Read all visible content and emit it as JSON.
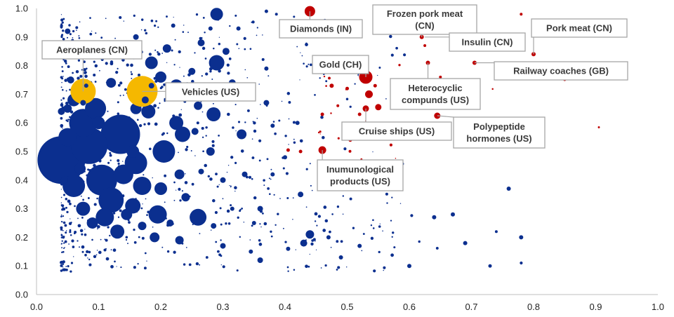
{
  "chart_data": {
    "type": "scatter",
    "title": "",
    "xlabel": "",
    "ylabel": "",
    "xlim": [
      0.0,
      1.0
    ],
    "ylim": [
      0.0,
      1.0
    ],
    "x_ticks": [
      "0.0",
      "0.1",
      "0.2",
      "0.3",
      "0.4",
      "0.5",
      "0.6",
      "0.7",
      "0.8",
      "0.9",
      "1.0"
    ],
    "y_ticks": [
      "0.0",
      "0.1",
      "0.2",
      "0.3",
      "0.4",
      "0.5",
      "0.6",
      "0.7",
      "0.8",
      "0.9",
      "1.0"
    ],
    "grid": false,
    "legend": "none",
    "colors": {
      "general": "#0b2f8f",
      "highlight_red": "#c00000",
      "highlight_gold": "#f5b800"
    },
    "series": [
      {
        "color": "#0b2f8f",
        "points": [
          {
            "x": 0.04,
            "y": 0.47,
            "s": 34
          },
          {
            "x": 0.135,
            "y": 0.56,
            "s": 28
          },
          {
            "x": 0.085,
            "y": 0.52,
            "s": 26
          },
          {
            "x": 0.105,
            "y": 0.4,
            "s": 22
          },
          {
            "x": 0.075,
            "y": 0.6,
            "s": 20
          },
          {
            "x": 0.12,
            "y": 0.33,
            "s": 18
          },
          {
            "x": 0.06,
            "y": 0.38,
            "s": 16
          },
          {
            "x": 0.16,
            "y": 0.46,
            "s": 16
          },
          {
            "x": 0.205,
            "y": 0.5,
            "s": 16
          },
          {
            "x": 0.095,
            "y": 0.65,
            "s": 15
          },
          {
            "x": 0.14,
            "y": 0.42,
            "s": 14
          },
          {
            "x": 0.17,
            "y": 0.38,
            "s": 13
          },
          {
            "x": 0.05,
            "y": 0.55,
            "s": 13
          },
          {
            "x": 0.11,
            "y": 0.27,
            "s": 13
          },
          {
            "x": 0.195,
            "y": 0.28,
            "s": 13
          },
          {
            "x": 0.26,
            "y": 0.27,
            "s": 12
          },
          {
            "x": 0.29,
            "y": 0.81,
            "s": 11
          },
          {
            "x": 0.235,
            "y": 0.56,
            "s": 11
          },
          {
            "x": 0.225,
            "y": 0.6,
            "s": 10
          },
          {
            "x": 0.285,
            "y": 0.63,
            "s": 10
          },
          {
            "x": 0.155,
            "y": 0.31,
            "s": 11
          },
          {
            "x": 0.075,
            "y": 0.3,
            "s": 10
          },
          {
            "x": 0.13,
            "y": 0.22,
            "s": 10
          },
          {
            "x": 0.18,
            "y": 0.64,
            "s": 10
          },
          {
            "x": 0.06,
            "y": 0.68,
            "s": 9
          },
          {
            "x": 0.185,
            "y": 0.81,
            "s": 9
          },
          {
            "x": 0.225,
            "y": 0.73,
            "s": 9
          },
          {
            "x": 0.29,
            "y": 0.98,
            "s": 9
          },
          {
            "x": 0.2,
            "y": 0.37,
            "s": 9
          },
          {
            "x": 0.155,
            "y": 0.5,
            "s": 9
          },
          {
            "x": 0.33,
            "y": 0.56,
            "s": 7
          },
          {
            "x": 0.23,
            "y": 0.42,
            "s": 7
          },
          {
            "x": 0.28,
            "y": 0.5,
            "s": 6
          },
          {
            "x": 0.24,
            "y": 0.34,
            "s": 6
          },
          {
            "x": 0.21,
            "y": 0.86,
            "s": 6
          },
          {
            "x": 0.16,
            "y": 0.65,
            "s": 8
          },
          {
            "x": 0.12,
            "y": 0.74,
            "s": 7
          },
          {
            "x": 0.1,
            "y": 0.6,
            "s": 9
          },
          {
            "x": 0.145,
            "y": 0.28,
            "s": 8
          },
          {
            "x": 0.09,
            "y": 0.25,
            "s": 8
          },
          {
            "x": 0.19,
            "y": 0.2,
            "s": 7
          },
          {
            "x": 0.17,
            "y": 0.24,
            "s": 6
          },
          {
            "x": 0.23,
            "y": 0.19,
            "s": 6
          },
          {
            "x": 0.26,
            "y": 0.66,
            "s": 6
          },
          {
            "x": 0.25,
            "y": 0.78,
            "s": 5
          },
          {
            "x": 0.2,
            "y": 0.76,
            "s": 8
          },
          {
            "x": 0.07,
            "y": 0.44,
            "s": 8
          },
          {
            "x": 0.05,
            "y": 0.65,
            "s": 6
          },
          {
            "x": 0.055,
            "y": 0.75,
            "s": 5
          },
          {
            "x": 0.315,
            "y": 0.74,
            "s": 5
          },
          {
            "x": 0.305,
            "y": 0.85,
            "s": 5
          },
          {
            "x": 0.265,
            "y": 0.88,
            "s": 5
          },
          {
            "x": 0.255,
            "y": 0.57,
            "s": 5
          },
          {
            "x": 0.215,
            "y": 0.25,
            "s": 5
          },
          {
            "x": 0.44,
            "y": 0.21,
            "s": 6
          },
          {
            "x": 0.43,
            "y": 0.18,
            "s": 5
          },
          {
            "x": 0.425,
            "y": 0.35,
            "s": 4
          },
          {
            "x": 0.37,
            "y": 0.67,
            "s": 4
          },
          {
            "x": 0.285,
            "y": 0.24,
            "s": 4
          },
          {
            "x": 0.3,
            "y": 0.17,
            "s": 4
          },
          {
            "x": 0.335,
            "y": 0.42,
            "s": 4
          },
          {
            "x": 0.36,
            "y": 0.3,
            "s": 4
          },
          {
            "x": 0.3,
            "y": 0.4,
            "s": 4
          },
          {
            "x": 0.35,
            "y": 0.25,
            "s": 3
          },
          {
            "x": 0.38,
            "y": 0.42,
            "s": 3
          },
          {
            "x": 0.405,
            "y": 0.16,
            "s": 3
          },
          {
            "x": 0.47,
            "y": 0.2,
            "s": 3
          },
          {
            "x": 0.49,
            "y": 0.13,
            "s": 3
          },
          {
            "x": 0.52,
            "y": 0.17,
            "s": 3
          },
          {
            "x": 0.49,
            "y": 0.37,
            "s": 3
          },
          {
            "x": 0.58,
            "y": 0.42,
            "s": 3
          },
          {
            "x": 0.6,
            "y": 0.1,
            "s": 3
          },
          {
            "x": 0.64,
            "y": 0.27,
            "s": 3
          },
          {
            "x": 0.67,
            "y": 0.28,
            "s": 3
          },
          {
            "x": 0.69,
            "y": 0.18,
            "s": 3
          },
          {
            "x": 0.76,
            "y": 0.37,
            "s": 3
          },
          {
            "x": 0.78,
            "y": 0.2,
            "s": 3
          },
          {
            "x": 0.05,
            "y": 0.92,
            "s": 4
          },
          {
            "x": 0.16,
            "y": 0.9,
            "s": 4
          },
          {
            "x": 0.28,
            "y": 0.93,
            "s": 3
          },
          {
            "x": 0.325,
            "y": 0.93,
            "s": 3
          },
          {
            "x": 0.22,
            "y": 0.94,
            "s": 3
          },
          {
            "x": 0.37,
            "y": 0.79,
            "s": 3
          },
          {
            "x": 0.37,
            "y": 0.99,
            "s": 2.5
          },
          {
            "x": 0.73,
            "y": 0.1,
            "s": 2.5
          },
          {
            "x": 0.74,
            "y": 0.22,
            "s": 2
          },
          {
            "x": 0.38,
            "y": 0.59,
            "s": 3
          },
          {
            "x": 0.345,
            "y": 0.15,
            "s": 3
          },
          {
            "x": 0.265,
            "y": 0.43,
            "s": 4
          },
          {
            "x": 0.245,
            "y": 0.7,
            "s": 4
          },
          {
            "x": 0.04,
            "y": 0.64,
            "s": 5
          },
          {
            "x": 0.045,
            "y": 0.4,
            "s": 5
          },
          {
            "x": 0.36,
            "y": 0.12,
            "s": 4
          },
          {
            "x": 0.4,
            "y": 0.48,
            "s": 3
          },
          {
            "x": 0.42,
            "y": 0.6,
            "s": 3
          },
          {
            "x": 0.315,
            "y": 0.3,
            "s": 3
          }
        ]
      },
      {
        "color": "#c00000",
        "points": [
          {
            "x": 0.44,
            "y": 0.99,
            "s": 8
          },
          {
            "x": 0.53,
            "y": 0.76,
            "s": 10
          },
          {
            "x": 0.535,
            "y": 0.7,
            "s": 6
          },
          {
            "x": 0.53,
            "y": 0.65,
            "s": 5
          },
          {
            "x": 0.55,
            "y": 0.655,
            "s": 5
          },
          {
            "x": 0.46,
            "y": 0.505,
            "s": 6
          },
          {
            "x": 0.645,
            "y": 0.625,
            "s": 5
          },
          {
            "x": 0.8,
            "y": 0.84,
            "s": 3
          },
          {
            "x": 0.705,
            "y": 0.81,
            "s": 3
          },
          {
            "x": 0.63,
            "y": 0.81,
            "s": 3
          },
          {
            "x": 0.62,
            "y": 0.9,
            "s": 3
          },
          {
            "x": 0.475,
            "y": 0.73,
            "s": 3
          },
          {
            "x": 0.505,
            "y": 0.54,
            "s": 2.5
          },
          {
            "x": 0.405,
            "y": 0.505,
            "s": 2.5
          },
          {
            "x": 0.425,
            "y": 0.5,
            "s": 2.5
          },
          {
            "x": 0.46,
            "y": 0.63,
            "s": 2.5
          },
          {
            "x": 0.5,
            "y": 0.72,
            "s": 2.5
          },
          {
            "x": 0.52,
            "y": 0.63,
            "s": 2.5
          },
          {
            "x": 0.545,
            "y": 0.73,
            "s": 2.5
          },
          {
            "x": 0.605,
            "y": 0.96,
            "s": 2
          },
          {
            "x": 0.65,
            "y": 0.76,
            "s": 2
          },
          {
            "x": 0.665,
            "y": 0.69,
            "s": 2
          },
          {
            "x": 0.7,
            "y": 0.56,
            "s": 2
          },
          {
            "x": 0.78,
            "y": 0.98,
            "s": 2
          },
          {
            "x": 0.625,
            "y": 0.87,
            "s": 2
          },
          {
            "x": 0.485,
            "y": 0.66,
            "s": 2
          }
        ]
      },
      {
        "color": "#f5b800",
        "points": [
          {
            "x": 0.075,
            "y": 0.71,
            "s": 18
          },
          {
            "x": 0.17,
            "y": 0.71,
            "s": 22
          }
        ]
      }
    ],
    "annotations": [
      {
        "text": [
          "Diamonds (IN)"
        ],
        "target": {
          "x": 0.44,
          "y": 0.99
        }
      },
      {
        "text": [
          "Frozen pork meat",
          "(CN)"
        ],
        "target": {
          "x": 0.62,
          "y": 0.9
        }
      },
      {
        "text": [
          "Insulin (CN)"
        ],
        "target": {
          "x": 0.625,
          "y": 0.9
        }
      },
      {
        "text": [
          "Pork meat (CN)"
        ],
        "target": {
          "x": 0.8,
          "y": 0.84
        }
      },
      {
        "text": [
          "Aeroplanes (CN)"
        ],
        "target": {
          "x": 0.075,
          "y": 0.71
        }
      },
      {
        "text": [
          "Gold (CH)"
        ],
        "target": {
          "x": 0.53,
          "y": 0.76
        }
      },
      {
        "text": [
          "Railway coaches (GB)"
        ],
        "target": {
          "x": 0.705,
          "y": 0.81
        }
      },
      {
        "text": [
          "Vehicles (US)"
        ],
        "target": {
          "x": 0.17,
          "y": 0.71
        }
      },
      {
        "text": [
          "Heterocyclic",
          "compunds (US)"
        ],
        "target": {
          "x": 0.63,
          "y": 0.81
        }
      },
      {
        "text": [
          "Polypeptide",
          "hormones (US)"
        ],
        "target": {
          "x": 0.645,
          "y": 0.625
        }
      },
      {
        "text": [
          "Cruise ships (US)"
        ],
        "target": {
          "x": 0.53,
          "y": 0.65
        }
      },
      {
        "text": [
          "Inumunological",
          "products (US)"
        ],
        "target": {
          "x": 0.46,
          "y": 0.505
        }
      }
    ]
  }
}
